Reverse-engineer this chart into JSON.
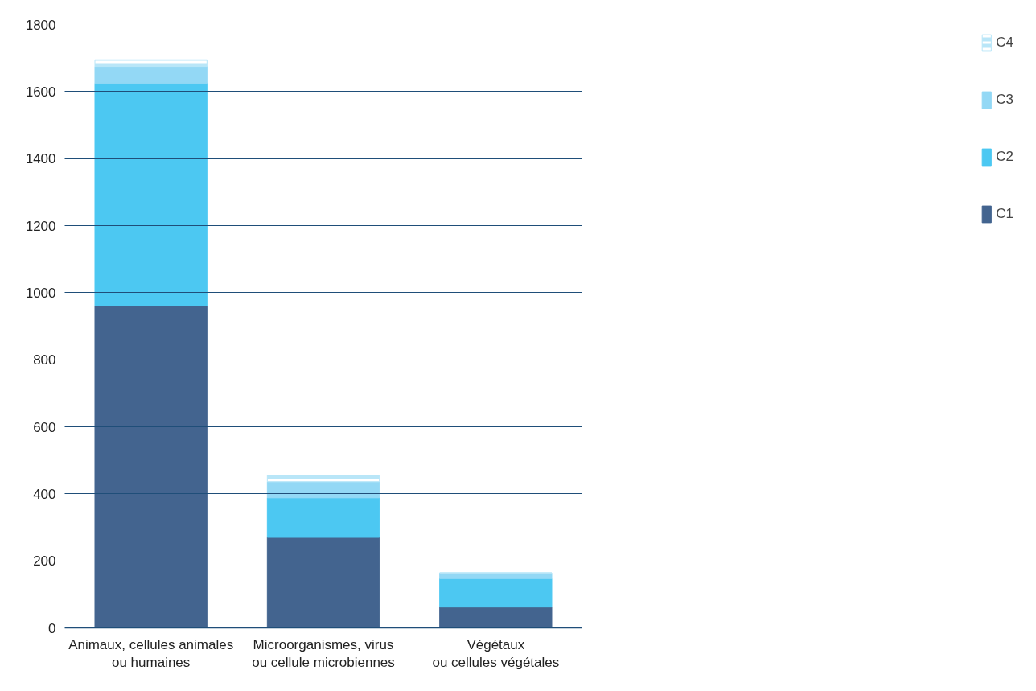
{
  "chart_data": {
    "type": "bar",
    "stacked": true,
    "categories": [
      "Animaux, cellules animales\nou humaines",
      "Microorganismes, virus\nou cellule microbiennes",
      "Végétaux\nou cellules végétales"
    ],
    "series": [
      {
        "name": "C1",
        "color": "#43648f",
        "values": [
          960,
          270,
          62
        ]
      },
      {
        "name": "C2",
        "color": "#4cc8f2",
        "values": [
          665,
          118,
          85
        ]
      },
      {
        "name": "C3",
        "color": "#93d8f5",
        "values": [
          50,
          48,
          17
        ]
      },
      {
        "name": "C4",
        "color": "#b9e6f8",
        "values": [
          20,
          20,
          0
        ]
      }
    ],
    "ylim": [
      0,
      1800
    ],
    "yticks": [
      0,
      200,
      400,
      600,
      800,
      1000,
      1200,
      1400,
      1600,
      1800
    ],
    "grid": "y",
    "legend": "top right"
  }
}
